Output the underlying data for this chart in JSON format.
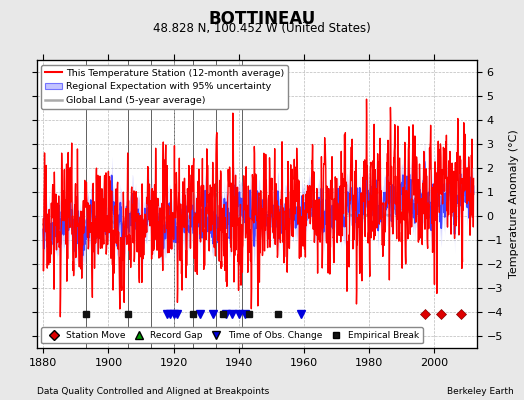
{
  "title": "BOTTINEAU",
  "subtitle": "48.828 N, 100.452 W (United States)",
  "xlabel_bottom": "Data Quality Controlled and Aligned at Breakpoints",
  "xlabel_right": "Berkeley Earth",
  "ylabel": "Temperature Anomaly (°C)",
  "xlim": [
    1878,
    2013
  ],
  "ylim": [
    -5.5,
    6.5
  ],
  "yticks": [
    -5,
    -4,
    -3,
    -2,
    -1,
    0,
    1,
    2,
    3,
    4,
    5,
    6
  ],
  "xticks": [
    1880,
    1900,
    1920,
    1940,
    1960,
    1980,
    2000
  ],
  "background_color": "#e8e8e8",
  "plot_bg_color": "#ffffff",
  "grid_color": "#bbbbbb",
  "legend_items": [
    {
      "label": "This Temperature Station (12-month average)",
      "color": "#ff0000",
      "lw": 1.0
    },
    {
      "label": "Regional Expectation with 95% uncertainty",
      "color": "#4444ff",
      "lw": 1.2,
      "band_color": "#aaaaff"
    },
    {
      "label": "Global Land (5-year average)",
      "color": "#aaaaaa",
      "lw": 1.8
    }
  ],
  "marker_legend": [
    {
      "label": "Station Move",
      "color": "#dd0000",
      "marker": "D",
      "size": 5
    },
    {
      "label": "Record Gap",
      "color": "#009900",
      "marker": "^",
      "size": 6
    },
    {
      "label": "Time of Obs. Change",
      "color": "#0000dd",
      "marker": "v",
      "size": 6
    },
    {
      "label": "Empirical Break",
      "color": "#111111",
      "marker": "s",
      "size": 4
    }
  ],
  "station_moves": [
    1997,
    2002,
    2008
  ],
  "record_gaps": [],
  "obs_changes": [
    1918,
    1919,
    1920,
    1921,
    1928,
    1932,
    1936,
    1938,
    1940,
    1942,
    1959
  ],
  "empirical_breaks": [
    1893,
    1906,
    1926,
    1935,
    1943,
    1952
  ],
  "vert_lines": [
    1893,
    1906,
    1913,
    1920,
    1926,
    1933,
    1941
  ],
  "marker_y": -4.1
}
